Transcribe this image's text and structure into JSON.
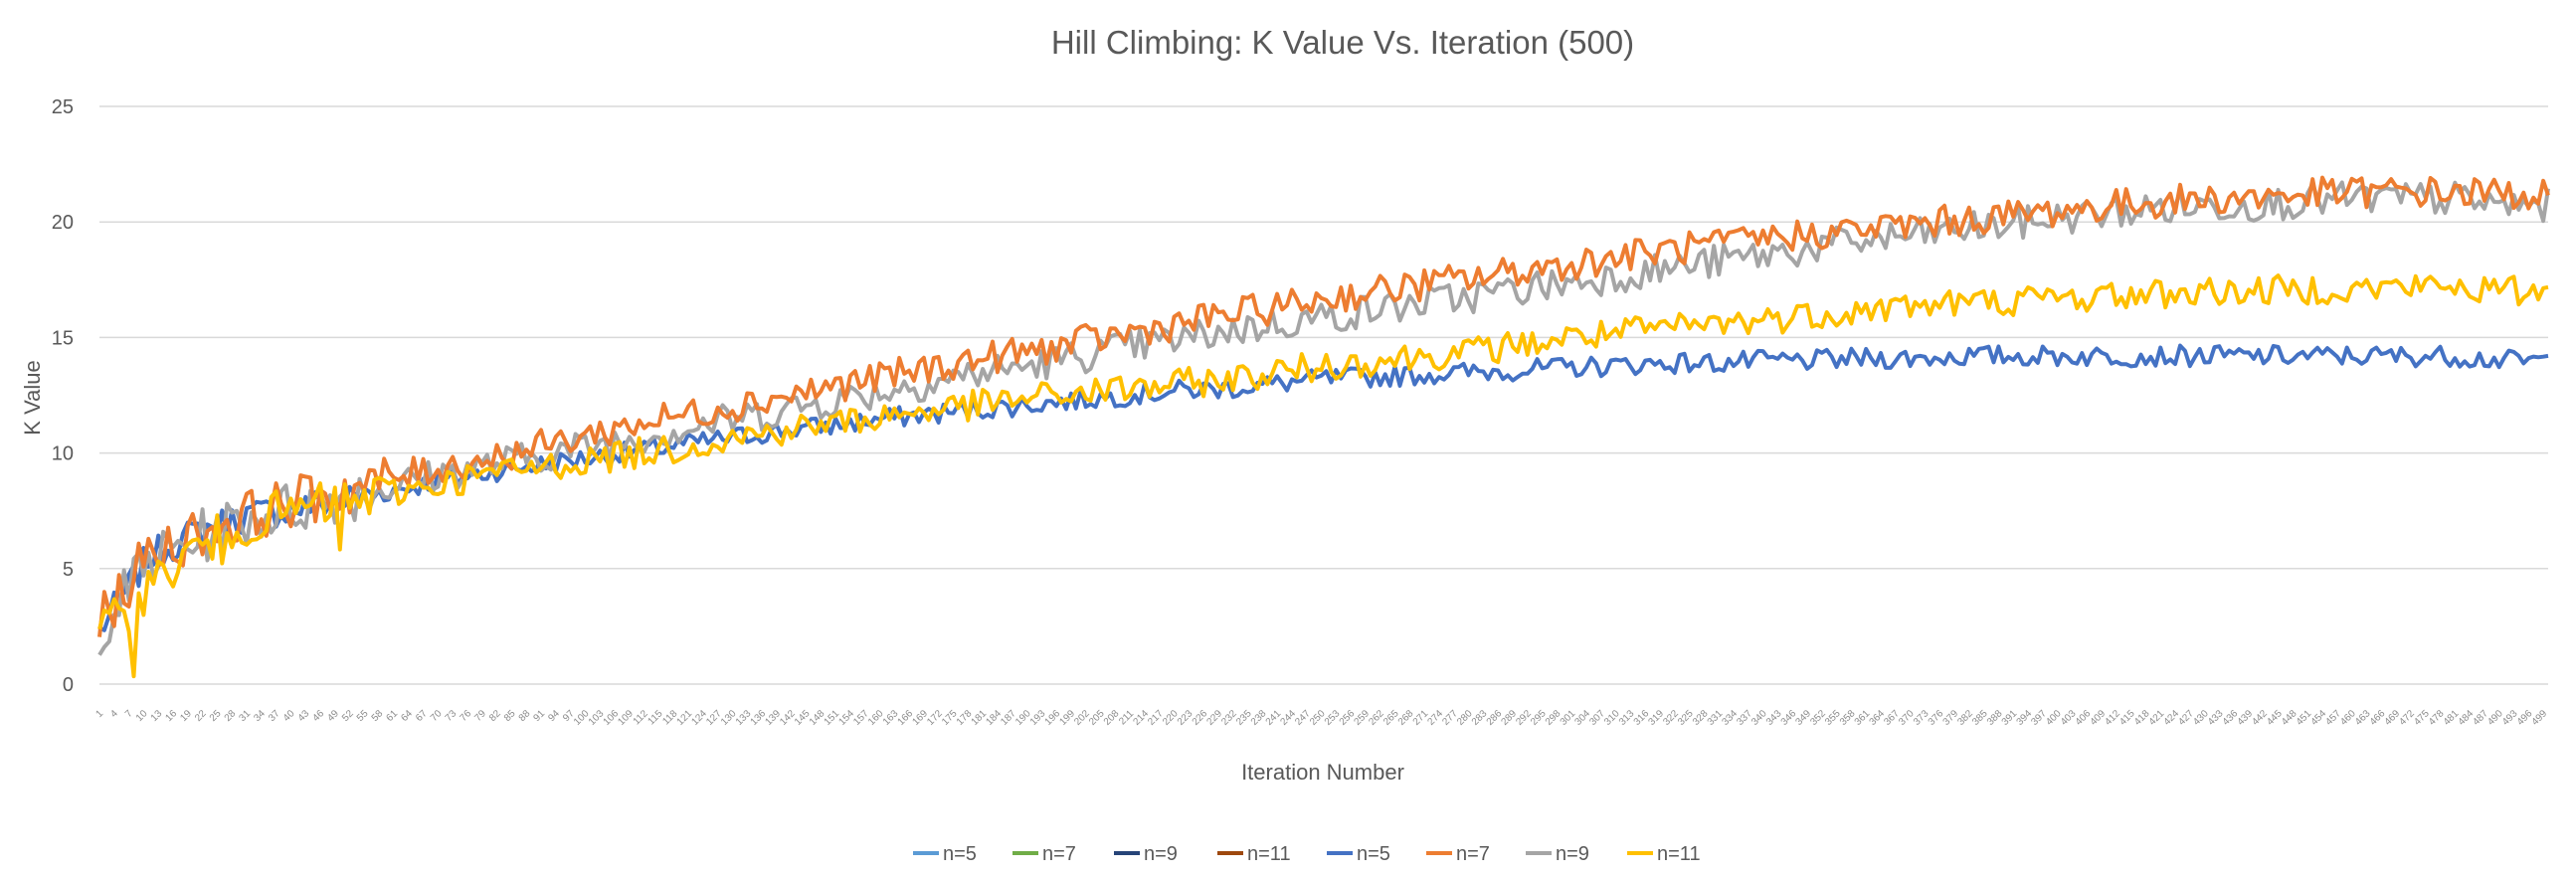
{
  "chart_data": {
    "type": "line",
    "title": "Hill Climbing: K Value Vs. Iteration (500)",
    "xlabel": "Iteration Number",
    "ylabel": "K Value",
    "ylim": [
      0,
      25
    ],
    "yticks": [
      "0",
      "5",
      "10",
      "15",
      "20",
      "25"
    ],
    "x_range": [
      1,
      500
    ],
    "grid": true,
    "legend_position": "bottom",
    "sample_step": 10,
    "series": [
      {
        "name": "n=5",
        "color": "#5b9bd5",
        "values": []
      },
      {
        "name": "n=7",
        "color": "#70ad47",
        "values": []
      },
      {
        "name": "n=9",
        "color": "#264478",
        "values": []
      },
      {
        "name": "n=11",
        "color": "#9e480e",
        "values": []
      },
      {
        "name": "n=5",
        "color": "#4472c4",
        "values": [
          2.3,
          5.5,
          6.6,
          7.3,
          7.6,
          8.0,
          8.4,
          8.8,
          9.2,
          9.5,
          9.8,
          10.1,
          10.4,
          10.7,
          11.0,
          11.2,
          11.5,
          11.7,
          11.9,
          12.1,
          12.3,
          12.5,
          12.7,
          12.8,
          13.0,
          13.2,
          13.3,
          13.4,
          13.5,
          13.6,
          13.7,
          13.8,
          13.9,
          13.9,
          14.0,
          14.0,
          14.1,
          14.1,
          14.2,
          14.2,
          14.2,
          14.2,
          14.2,
          14.2,
          14.2,
          14.2,
          14.2,
          14.2,
          14.2,
          14.0
        ]
      },
      {
        "name": "n=7",
        "color": "#ed7d31",
        "values": [
          2.6,
          5.6,
          6.5,
          7.3,
          7.9,
          8.4,
          8.9,
          9.4,
          9.8,
          10.3,
          10.8,
          11.3,
          11.7,
          12.1,
          12.5,
          12.9,
          13.3,
          13.7,
          14.1,
          14.4,
          14.8,
          15.2,
          15.6,
          16.0,
          16.3,
          16.7,
          17.0,
          17.3,
          17.6,
          17.9,
          18.2,
          18.5,
          18.8,
          19.0,
          19.3,
          19.5,
          19.7,
          19.9,
          20.1,
          20.3,
          20.5,
          20.7,
          20.9,
          21.0,
          21.1,
          21.2,
          21.3,
          21.3,
          21.3,
          21.2
        ]
      },
      {
        "name": "n=9",
        "color": "#a5a5a5",
        "values": [
          2.4,
          5.3,
          6.3,
          7.1,
          7.7,
          8.2,
          8.6,
          9.1,
          9.5,
          9.9,
          10.3,
          10.7,
          11.1,
          11.5,
          11.9,
          12.3,
          12.7,
          13.1,
          13.5,
          13.8,
          14.2,
          14.6,
          14.9,
          15.3,
          15.6,
          15.9,
          16.2,
          16.5,
          16.8,
          17.1,
          17.4,
          17.7,
          18.0,
          18.3,
          18.6,
          18.9,
          19.2,
          19.4,
          19.7,
          19.9,
          20.2,
          20.4,
          20.6,
          20.7,
          20.8,
          20.9,
          21.0,
          21.0,
          21.0,
          20.7
        ]
      },
      {
        "name": "n=11",
        "color": "#ffc000",
        "values": [
          2.0,
          4.2,
          5.9,
          7.0,
          7.5,
          7.9,
          8.3,
          8.7,
          9.1,
          9.4,
          9.7,
          10.0,
          10.3,
          10.7,
          11.0,
          11.3,
          11.6,
          11.9,
          12.1,
          12.4,
          12.6,
          12.8,
          13.0,
          13.2,
          13.5,
          13.8,
          14.0,
          14.2,
          14.4,
          14.7,
          15.0,
          15.2,
          15.4,
          15.6,
          15.8,
          16.0,
          16.2,
          16.4,
          16.5,
          16.6,
          16.7,
          16.8,
          16.9,
          17.0,
          17.0,
          17.1,
          17.1,
          17.2,
          17.2,
          17.0
        ]
      }
    ]
  }
}
